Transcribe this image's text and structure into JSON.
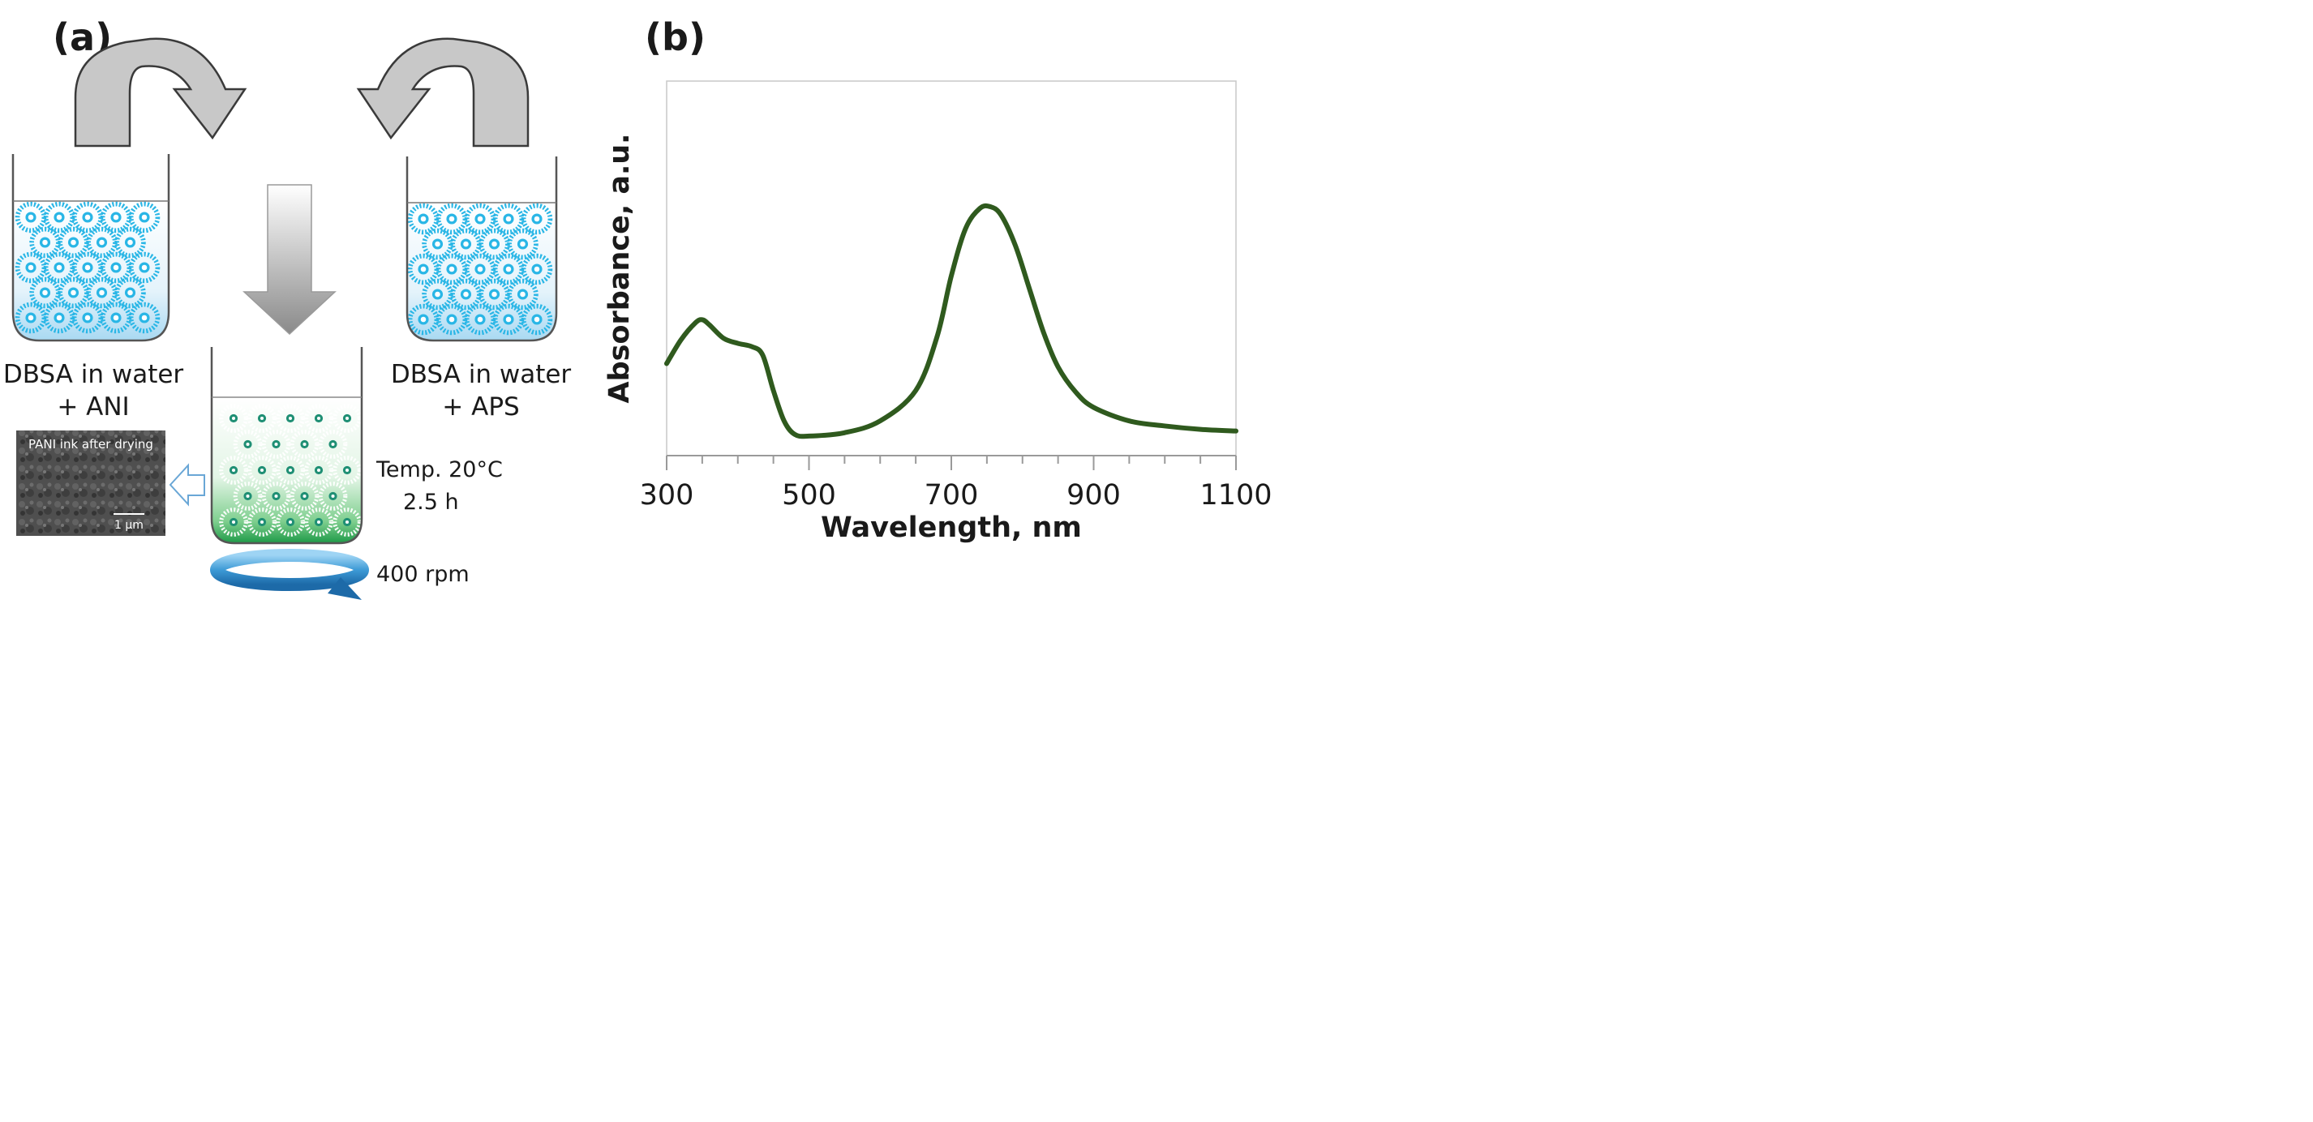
{
  "panel_a": {
    "label": "(a)",
    "beaker_left_caption": [
      "DBSA in water",
      "+ ANI"
    ],
    "beaker_right_caption": [
      "DBSA in water",
      "+ APS"
    ],
    "sem_inset_title": "PANI ink after drying",
    "sem_scale_label": "1 µm",
    "conditions": [
      "Temp. 20°C",
      "2.5 h"
    ],
    "stirring": "400 rpm",
    "colors": {
      "micelle": "#29b6e6",
      "reaction_dot": "#1f8f74",
      "arrow_gray": "#c8c8c8",
      "stir_arrow": "#2f8fd0"
    }
  },
  "panel_b": {
    "label": "(b)"
  },
  "chart_data": {
    "type": "line",
    "title": "",
    "xlabel": "Wavelength, nm",
    "ylabel": "Absorbance, a.u.",
    "xlim": [
      300,
      1100
    ],
    "ylim": [
      0,
      1
    ],
    "xticks": [
      300,
      500,
      700,
      900,
      1100
    ],
    "series": [
      {
        "name": "PANI ink",
        "color": "#2f5a1e",
        "x": [
          300,
          320,
          340,
          350,
          360,
          380,
          400,
          420,
          435,
          450,
          465,
          480,
          500,
          550,
          600,
          650,
          680,
          700,
          720,
          740,
          755,
          770,
          790,
          810,
          830,
          850,
          875,
          900,
          950,
          1000,
          1050,
          1100
        ],
        "y": [
          0.22,
          0.29,
          0.34,
          0.35,
          0.335,
          0.295,
          0.28,
          0.27,
          0.245,
          0.14,
          0.05,
          0.01,
          0.005,
          0.015,
          0.05,
          0.14,
          0.3,
          0.48,
          0.62,
          0.68,
          0.685,
          0.66,
          0.57,
          0.44,
          0.31,
          0.21,
          0.135,
          0.09,
          0.05,
          0.035,
          0.025,
          0.02
        ]
      }
    ]
  }
}
